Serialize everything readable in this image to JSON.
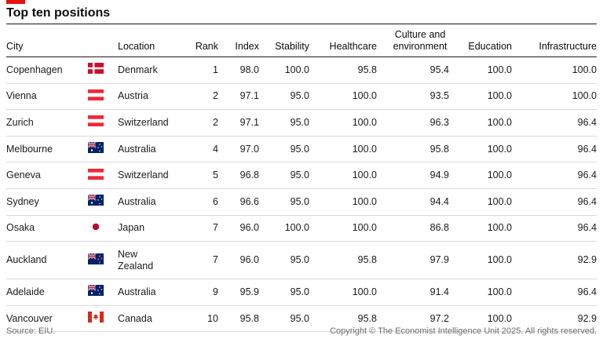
{
  "title": "Top ten positions",
  "source": "Source: EIU.",
  "copyright": "Copyright © The Economist Intelligence Unit 2025. All rights reserved.",
  "colors": {
    "accent": "#e3120b",
    "rule": "#1a1a1a",
    "divider": "#d9d9d9"
  },
  "chart_data": {
    "type": "table",
    "title": "Top ten positions",
    "columns": [
      "City",
      "",
      "Location",
      "Rank",
      "Index",
      "Stability",
      "Healthcare",
      "Culture and environment",
      "Education",
      "Infrastructure"
    ],
    "rows": [
      {
        "city": "Copenhagen",
        "flag": "denmark-flag",
        "location": "Denmark",
        "rank": "1",
        "index": "98.0",
        "stability": "100.0",
        "healthcare": "95.8",
        "culture": "95.4",
        "education": "100.0",
        "infrastructure": "100.0"
      },
      {
        "city": "Vienna",
        "flag": "austria-flag",
        "location": "Austria",
        "rank": "2",
        "index": "97.1",
        "stability": "95.0",
        "healthcare": "100.0",
        "culture": "93.5",
        "education": "100.0",
        "infrastructure": "100.0"
      },
      {
        "city": "Zurich",
        "flag": "switzerland-flag",
        "location": "Switzerland",
        "rank": "2",
        "index": "97.1",
        "stability": "95.0",
        "healthcare": "100.0",
        "culture": "96.3",
        "education": "100.0",
        "infrastructure": "96.4"
      },
      {
        "city": "Melbourne",
        "flag": "australia-flag",
        "location": "Australia",
        "rank": "4",
        "index": "97.0",
        "stability": "95.0",
        "healthcare": "100.0",
        "culture": "95.8",
        "education": "100.0",
        "infrastructure": "96.4"
      },
      {
        "city": "Geneva",
        "flag": "switzerland-flag",
        "location": "Switzerland",
        "rank": "5",
        "index": "96.8",
        "stability": "95.0",
        "healthcare": "100.0",
        "culture": "94.9",
        "education": "100.0",
        "infrastructure": "96.4"
      },
      {
        "city": "Sydney",
        "flag": "australia-flag",
        "location": "Australia",
        "rank": "6",
        "index": "96.6",
        "stability": "95.0",
        "healthcare": "100.0",
        "culture": "94.4",
        "education": "100.0",
        "infrastructure": "96.4"
      },
      {
        "city": "Osaka",
        "flag": "japan-flag",
        "location": "Japan",
        "rank": "7",
        "index": "96.0",
        "stability": "100.0",
        "healthcare": "100.0",
        "culture": "86.8",
        "education": "100.0",
        "infrastructure": "96.4"
      },
      {
        "city": "Auckland",
        "flag": "new-zealand-flag",
        "location": "New Zealand",
        "rank": "7",
        "index": "96.0",
        "stability": "95.0",
        "healthcare": "95.8",
        "culture": "97.9",
        "education": "100.0",
        "infrastructure": "92.9"
      },
      {
        "city": "Adelaide",
        "flag": "australia-flag",
        "location": "Australia",
        "rank": "9",
        "index": "95.9",
        "stability": "95.0",
        "healthcare": "100.0",
        "culture": "91.4",
        "education": "100.0",
        "infrastructure": "96.4"
      },
      {
        "city": "Vancouver",
        "flag": "canada-flag",
        "location": "Canada",
        "rank": "10",
        "index": "95.8",
        "stability": "95.0",
        "healthcare": "95.8",
        "culture": "97.2",
        "education": "100.0",
        "infrastructure": "92.9"
      }
    ]
  }
}
